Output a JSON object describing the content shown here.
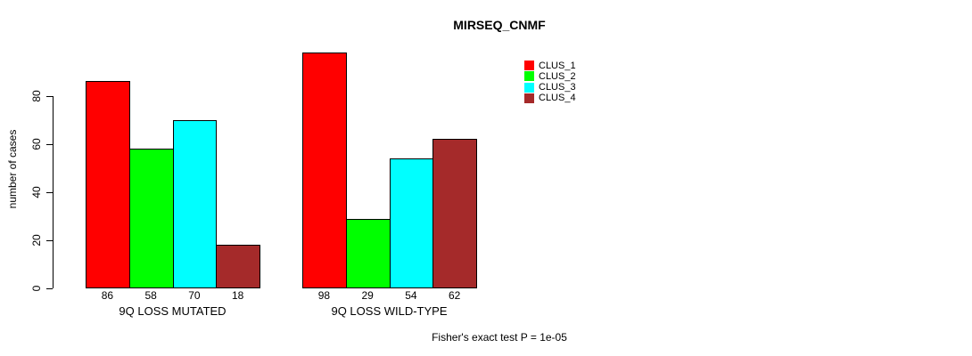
{
  "chart_data": {
    "type": "bar",
    "title": "MIRSEQ_CNMF",
    "ylabel": "number of cases",
    "xlabel": "",
    "categories": [
      "9Q LOSS MUTATED",
      "9Q LOSS WILD-TYPE"
    ],
    "series": [
      {
        "name": "CLUS_1",
        "color": "#FF0000",
        "values": [
          86,
          98
        ]
      },
      {
        "name": "CLUS_2",
        "color": "#00FF00",
        "values": [
          58,
          29
        ]
      },
      {
        "name": "CLUS_3",
        "color": "#00FFFF",
        "values": [
          70,
          54
        ]
      },
      {
        "name": "CLUS_4",
        "color": "#A52A2A",
        "values": [
          18,
          62
        ]
      }
    ],
    "yticks": [
      0,
      20,
      40,
      60,
      80
    ],
    "ylim": [
      0,
      98
    ],
    "grid": false,
    "legend_position": "top-right-of-plot",
    "bar_value_labels": true,
    "annotation": "Fisher's exact test P = 1e-05"
  }
}
